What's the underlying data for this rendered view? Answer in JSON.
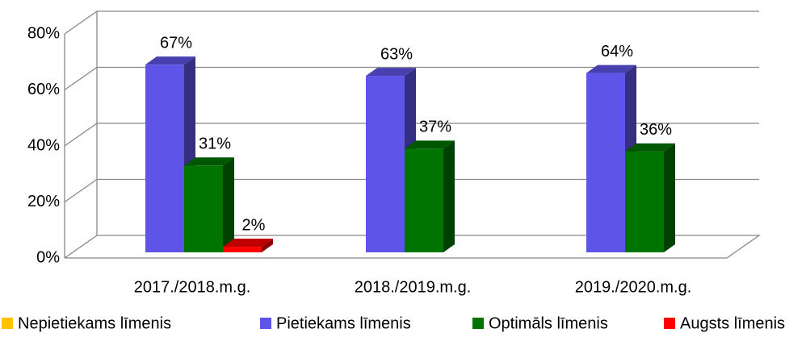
{
  "chart_data": {
    "type": "bar3d",
    "categories": [
      "2017./2018.m.g.",
      "2018./2019.m.g.",
      "2019./2020.m.g."
    ],
    "series": [
      {
        "name": "Nepietiekams līmenis",
        "color": "#ffc000",
        "values": [
          null,
          null,
          null
        ],
        "value_labels": [
          null,
          null,
          null
        ]
      },
      {
        "name": "Pietiekams līmenis",
        "color": "#5e55e8",
        "values": [
          67,
          63,
          64
        ],
        "value_labels": [
          "67%",
          "63%",
          "64%"
        ]
      },
      {
        "name": "Optimāls līmenis",
        "color": "#007400",
        "values": [
          31,
          37,
          36
        ],
        "value_labels": [
          "31%",
          "37%",
          "36%"
        ]
      },
      {
        "name": "Augsts līmenis",
        "color": "#ff0000",
        "values": [
          2,
          null,
          null
        ],
        "value_labels": [
          "2%",
          null,
          null
        ]
      }
    ],
    "ylim": [
      0,
      80
    ],
    "yticks": [
      {
        "value": 0,
        "label": "0%"
      },
      {
        "value": 20,
        "label": "20%"
      },
      {
        "value": 40,
        "label": "40%"
      },
      {
        "value": 60,
        "label": "60%"
      },
      {
        "value": 80,
        "label": "80%"
      }
    ],
    "grid": true,
    "legend": "bottom"
  }
}
